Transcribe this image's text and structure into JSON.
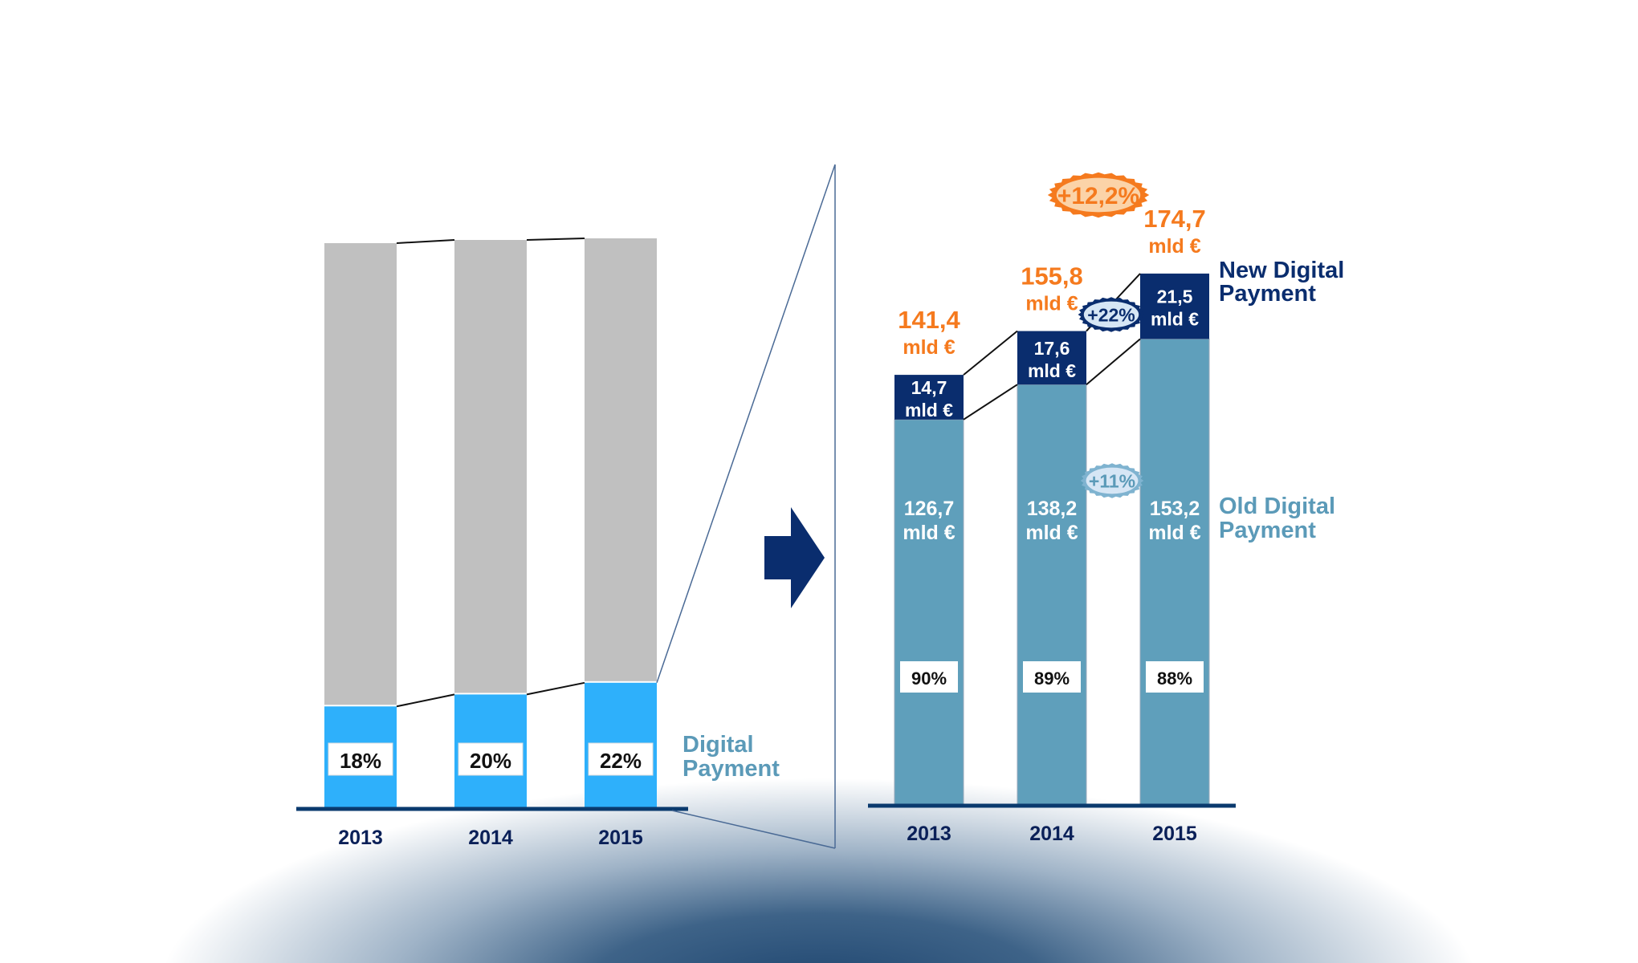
{
  "chart_data": [
    {
      "type": "bar",
      "stacked": true,
      "categories": [
        "2013",
        "2014",
        "2015"
      ],
      "series": [
        {
          "name": "Digital Payment",
          "values": [
            18,
            20,
            22
          ],
          "labels": [
            "18%",
            "20%",
            "22%"
          ],
          "color": "#2eb0fb"
        },
        {
          "values": [
            82,
            80,
            78
          ],
          "color": "#c0c0c0"
        }
      ],
      "legend": "right",
      "grid": false
    },
    {
      "type": "bar",
      "stacked": true,
      "categories": [
        "2013",
        "2014",
        "2015"
      ],
      "series": [
        {
          "name": "Old Digital Payment",
          "values": [
            126.7,
            138.2,
            153.2
          ],
          "labels": [
            "126,7",
            "138,2",
            "153,2"
          ],
          "share_labels": [
            "90%",
            "89%",
            "88%"
          ],
          "color": "#5f9fbb"
        },
        {
          "name": "New Digital Payment",
          "values": [
            14.7,
            17.6,
            21.5
          ],
          "labels": [
            "14,7",
            "17,6",
            "21,5"
          ],
          "color": "#0a2d6e"
        }
      ],
      "totals": [
        141.4,
        155.8,
        174.7
      ],
      "total_labels": [
        "141,4",
        "155,8",
        "174,7"
      ],
      "unit": "mld €",
      "annotations": {
        "total_growth": "+12,2%",
        "new_growth": "+22%",
        "old_growth": "+11%"
      },
      "legend": "right",
      "grid": false,
      "colors": {
        "total_labels": "#f57a1e",
        "axis": "#0a3a6e"
      }
    }
  ]
}
